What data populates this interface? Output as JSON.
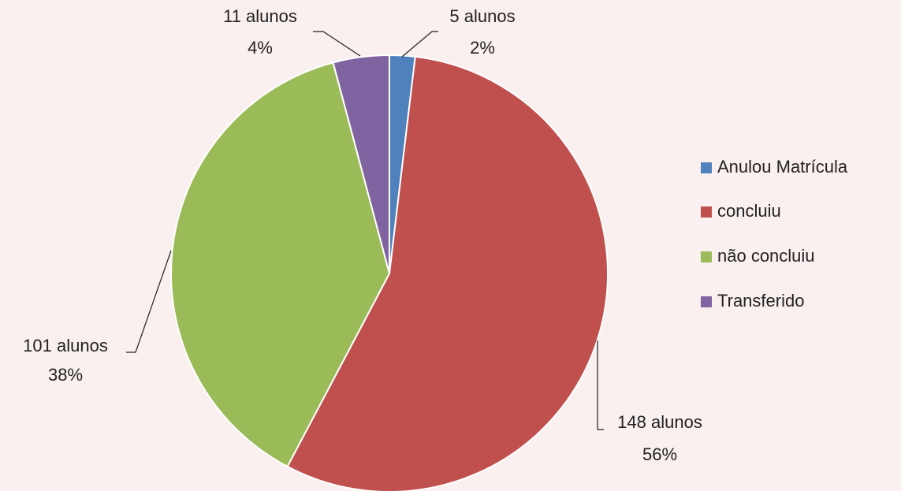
{
  "chart_data": {
    "type": "pie",
    "categories": [
      "Anulou Matrícula",
      "concluiu",
      "não concluiu",
      "Transferido"
    ],
    "values": [
      5,
      148,
      101,
      11
    ],
    "value_labels": [
      "5 alunos",
      "148 alunos",
      "101 alunos",
      "11 alunos"
    ],
    "percent_labels": [
      "2%",
      "56%",
      "38%",
      "4%"
    ],
    "colors": [
      "#4f81bd",
      "#c0504d",
      "#9bbb59",
      "#8064a2"
    ],
    "legend": "right"
  }
}
